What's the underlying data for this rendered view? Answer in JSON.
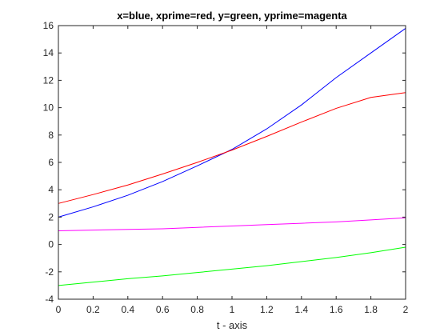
{
  "chart_data": {
    "type": "line",
    "title": "x=blue, xprime=red, y=green, yprime=magenta",
    "xlabel": "t - axis",
    "ylabel": "",
    "xlim": [
      0,
      2
    ],
    "ylim": [
      -4,
      16
    ],
    "grid": false,
    "xticks": [
      0,
      0.2,
      0.4,
      0.6,
      0.8,
      1,
      1.2,
      1.4,
      1.6,
      1.8,
      2
    ],
    "xtick_labels": [
      "0",
      "0.2",
      "0.4",
      "0.6",
      "0.8",
      "1",
      "1.2",
      "1.4",
      "1.6",
      "1.8",
      "2"
    ],
    "yticks": [
      -4,
      -2,
      0,
      2,
      4,
      6,
      8,
      10,
      12,
      14,
      16
    ],
    "ytick_labels": [
      "-4",
      "-2",
      "0",
      "2",
      "4",
      "6",
      "8",
      "10",
      "12",
      "14",
      "16"
    ],
    "x": [
      0,
      0.2,
      0.4,
      0.6,
      0.8,
      1.0,
      1.2,
      1.4,
      1.6,
      1.8,
      2.0
    ],
    "series": [
      {
        "color": "#0000ff",
        "values": [
          2.0,
          2.75,
          3.6,
          4.6,
          5.75,
          6.95,
          8.45,
          10.2,
          12.2,
          14.0,
          15.8
        ]
      },
      {
        "color": "#ff0000",
        "values": [
          3.0,
          3.65,
          4.35,
          5.15,
          6.0,
          6.9,
          7.9,
          8.95,
          9.95,
          10.75,
          11.1
        ]
      },
      {
        "color": "#00ff00",
        "values": [
          -3.0,
          -2.75,
          -2.5,
          -2.3,
          -2.05,
          -1.8,
          -1.55,
          -1.25,
          -0.95,
          -0.6,
          -0.2
        ]
      },
      {
        "color": "#ff00ff",
        "values": [
          1.0,
          1.05,
          1.1,
          1.15,
          1.25,
          1.35,
          1.45,
          1.55,
          1.65,
          1.8,
          1.95
        ]
      }
    ]
  }
}
